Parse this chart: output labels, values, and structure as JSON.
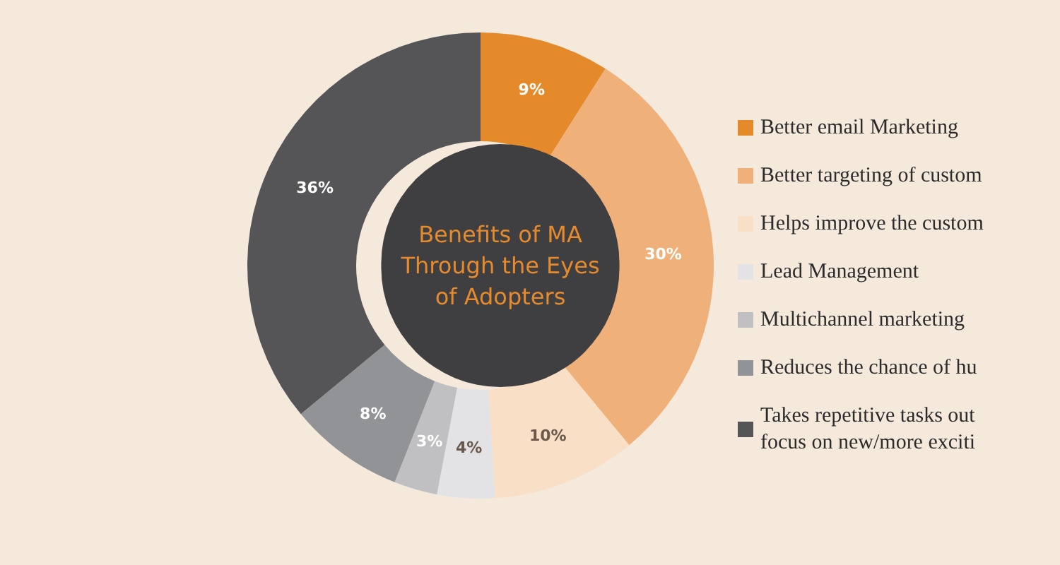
{
  "chart_data": {
    "type": "donut",
    "title": "Benefits of MA\nThrough the Eyes\nof Adopters",
    "categories": [
      "Better email Marketing",
      "Better targeting of custom",
      "Helps improve the custom",
      "Lead Management",
      "Multichannel marketing",
      "Reduces the chance of hu",
      "Takes repetitive tasks out\nfocus on new/more exciti"
    ],
    "values": [
      9,
      30,
      10,
      4,
      3,
      8,
      36
    ],
    "colors": [
      "#e58a2a",
      "#efb07a",
      "#f8dfc6",
      "#e3e3e5",
      "#c0c0c3",
      "#929396",
      "#555557"
    ],
    "value_labels": [
      "9%",
      "30%",
      "10%",
      "4%",
      "3%",
      "8%",
      "36%"
    ],
    "legend": "right"
  }
}
